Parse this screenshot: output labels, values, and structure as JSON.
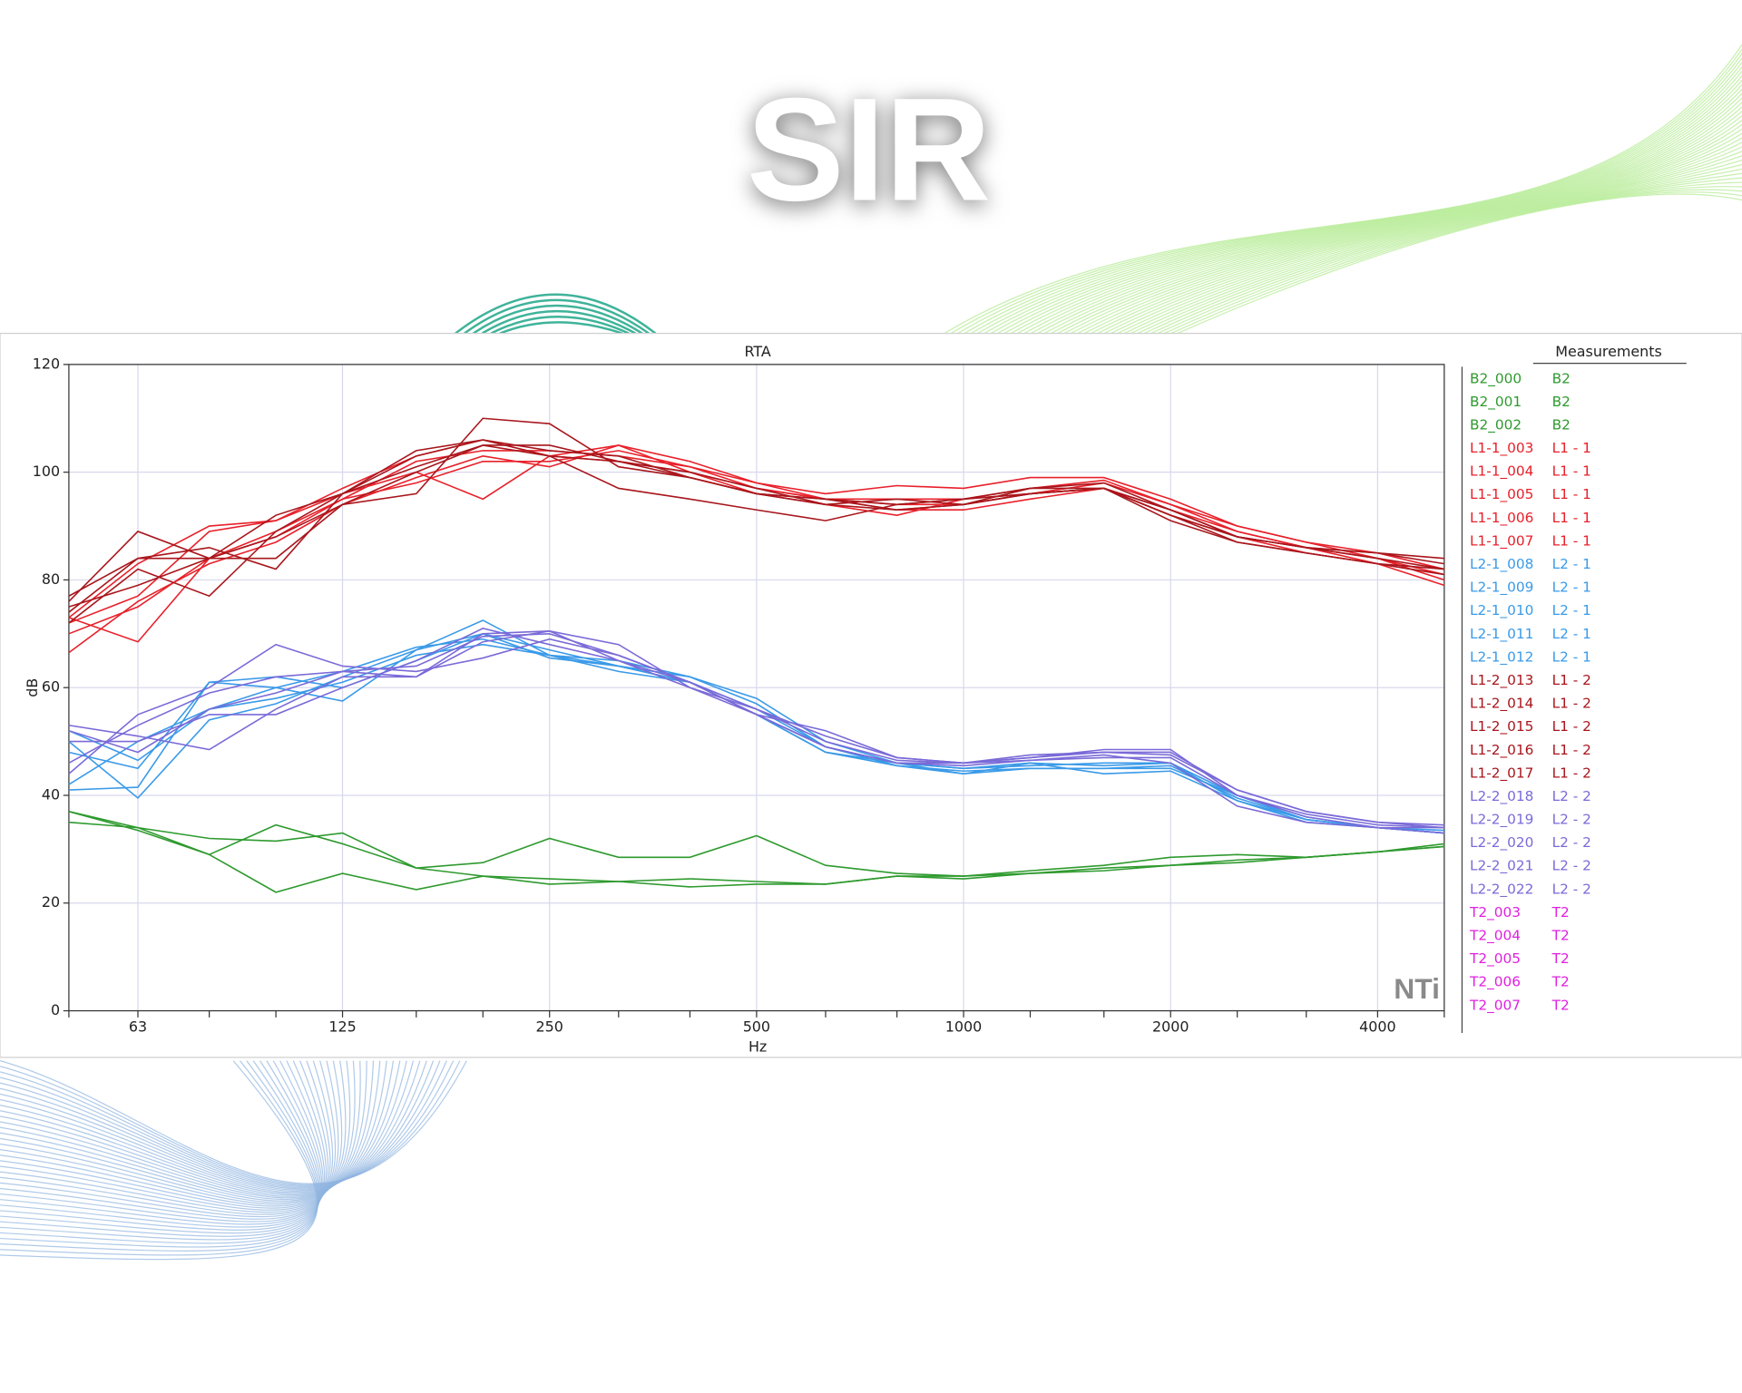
{
  "title": "SIR",
  "chart_data": {
    "type": "line",
    "title": "RTA",
    "x_label": "Hz",
    "y_label": "dB",
    "logo": "NTi",
    "legend_title": "Measurements",
    "xscale": "log",
    "grid": true,
    "x": [
      50,
      63,
      80,
      100,
      125,
      160,
      200,
      250,
      315,
      400,
      500,
      630,
      800,
      1000,
      1250,
      1600,
      2000,
      2500,
      3150,
      4000,
      5000
    ],
    "xlim": [
      50,
      5000
    ],
    "xticks": [
      63,
      125,
      250,
      500,
      1000,
      2000,
      4000
    ],
    "ylim": [
      0,
      120
    ],
    "yticks": [
      0,
      20,
      40,
      60,
      80,
      100,
      120
    ],
    "series": [
      {
        "name": "B2_000",
        "group": "B2",
        "color": "#2e9a2e",
        "values": [
          37,
          34,
          29,
          34.5,
          31,
          26.5,
          25,
          24.5,
          24,
          24.5,
          24,
          23.5,
          25,
          25,
          25.5,
          26,
          27,
          27.5,
          28.5,
          29.5,
          30.5
        ]
      },
      {
        "name": "B2_001",
        "group": "B2",
        "color": "#2e9a2e",
        "values": [
          37,
          33.5,
          29,
          22,
          25.5,
          22.5,
          25,
          23.5,
          24,
          23,
          23.5,
          23.5,
          25,
          24.5,
          25.5,
          26.5,
          27,
          28,
          28.5,
          29.5,
          30.5
        ]
      },
      {
        "name": "B2_002",
        "group": "B2",
        "color": "#2e9a2e",
        "values": [
          35,
          34,
          32,
          31.5,
          33,
          26.5,
          27.5,
          32,
          28.5,
          28.5,
          32.5,
          27,
          25.5,
          25,
          26,
          27,
          28.5,
          29,
          28.5,
          29.5,
          31
        ]
      },
      {
        "name": "L1-1_003",
        "group": "L1 - 1",
        "color": "#e8202a",
        "values": [
          73,
          68.5,
          84,
          88,
          95,
          98,
          102,
          102,
          104,
          101,
          98,
          95,
          95,
          95,
          97,
          98.5,
          94,
          90,
          87,
          85,
          82
        ]
      },
      {
        "name": "L1-1_004",
        "group": "L1 - 1",
        "color": "#e8202a",
        "values": [
          66.5,
          76,
          83,
          87,
          94,
          99,
          103,
          101,
          105,
          100,
          97,
          95,
          94,
          94,
          96,
          97,
          93,
          89,
          86,
          84,
          81
        ]
      },
      {
        "name": "L1-1_005",
        "group": "L1 - 1",
        "color": "#e8202a",
        "values": [
          73,
          83,
          90,
          91,
          96,
          100,
          95,
          103,
          105,
          102,
          98,
          96,
          97.5,
          97,
          99,
          99,
          95,
          90,
          87,
          84,
          80
        ]
      },
      {
        "name": "L1-1_006",
        "group": "L1 - 1",
        "color": "#e8202a",
        "values": [
          70,
          75,
          84,
          89,
          95,
          102,
          104,
          104,
          103,
          101,
          97,
          95,
          93,
          93,
          95,
          97,
          92,
          88,
          85,
          83,
          79
        ]
      },
      {
        "name": "L1-1_007",
        "group": "L1 - 1",
        "color": "#e8202a",
        "values": [
          72,
          77,
          89,
          91,
          97,
          103,
          106,
          103,
          102,
          100,
          96,
          94,
          92,
          95,
          96,
          98,
          94,
          89,
          86,
          83,
          81
        ]
      },
      {
        "name": "L2-1_008",
        "group": "L2 - 1",
        "color": "#3a9ae8",
        "values": [
          41,
          41.5,
          61,
          60,
          57.5,
          67,
          72.5,
          66,
          64,
          61,
          55,
          48,
          46,
          44,
          46,
          44,
          44.5,
          39,
          35.5,
          34,
          33
        ]
      },
      {
        "name": "L2-1_009",
        "group": "L2 - 1",
        "color": "#3a9ae8",
        "values": [
          52,
          46.5,
          56,
          58,
          61,
          66,
          68,
          66,
          63,
          61,
          56,
          49,
          45.5,
          44.5,
          45,
          45,
          45,
          40,
          36,
          34,
          33
        ]
      },
      {
        "name": "L2-1_010",
        "group": "L2 - 1",
        "color": "#3a9ae8",
        "values": [
          50,
          39.5,
          54,
          57,
          62,
          67,
          70,
          65.5,
          64,
          62,
          57,
          49,
          46,
          45,
          45.5,
          46,
          46,
          40,
          35.5,
          34,
          33.5
        ]
      },
      {
        "name": "L2-1_011",
        "group": "L2 - 1",
        "color": "#3a9ae8",
        "values": [
          42,
          50,
          56,
          60,
          63,
          67.5,
          69,
          66,
          65,
          62,
          58,
          50,
          46,
          45,
          46,
          45.5,
          46,
          39,
          35,
          34,
          33
        ]
      },
      {
        "name": "L2-1_012",
        "group": "L2 - 1",
        "color": "#3a9ae8",
        "values": [
          48,
          45,
          61,
          62,
          60,
          65,
          70,
          67,
          64,
          61,
          55,
          48,
          45.5,
          44,
          45,
          45,
          45.5,
          39.5,
          35.5,
          34,
          33
        ]
      },
      {
        "name": "L1-2_013",
        "group": "L1 - 2",
        "color": "#a8161c",
        "values": [
          76,
          89,
          84,
          84,
          94,
          96,
          110,
          109,
          101,
          99,
          96,
          94,
          93,
          94,
          96,
          97,
          91,
          87,
          85,
          83,
          82
        ]
      },
      {
        "name": "L1-2_014",
        "group": "L1 - 2",
        "color": "#a8161c",
        "values": [
          74,
          84,
          86,
          82,
          96,
          103,
          106,
          103,
          97,
          95,
          93,
          91,
          94,
          95,
          96,
          97,
          92,
          87,
          85,
          83,
          81
        ]
      },
      {
        "name": "L1-2_015",
        "group": "L1 - 2",
        "color": "#a8161c",
        "values": [
          72,
          82,
          77,
          89,
          96,
          101,
          105,
          105,
          102,
          99,
          96,
          95,
          94,
          95,
          97,
          97,
          92,
          88,
          86,
          84,
          82
        ]
      },
      {
        "name": "L1-2_016",
        "group": "L1 - 2",
        "color": "#a8161c",
        "values": [
          75,
          79,
          84,
          92,
          96,
          104,
          106,
          104,
          103,
          99,
          96,
          95,
          93,
          94,
          96,
          97,
          93,
          88,
          86,
          85,
          83
        ]
      },
      {
        "name": "L1-2_017",
        "group": "L1 - 2",
        "color": "#a8161c",
        "values": [
          77,
          84,
          84,
          88,
          94,
          100,
          105,
          103,
          102,
          100,
          97,
          94,
          95,
          94,
          97,
          98,
          93,
          88,
          86,
          85,
          84
        ]
      },
      {
        "name": "L2-2_018",
        "group": "L2 - 2",
        "color": "#7a6ad8",
        "values": [
          53,
          51,
          48.5,
          56,
          62,
          62,
          70,
          70.5,
          68,
          60,
          55,
          52,
          47,
          46,
          47,
          48,
          47.5,
          41,
          37,
          35,
          34
        ]
      },
      {
        "name": "L2-2_019",
        "group": "L2 - 2",
        "color": "#7a6ad8",
        "values": [
          44,
          55,
          60,
          68,
          64,
          63,
          65.5,
          69,
          66,
          61,
          55,
          49,
          46,
          45.5,
          46.5,
          47.5,
          46,
          38,
          35,
          34,
          33
        ]
      },
      {
        "name": "L2-2_020",
        "group": "L2 - 2",
        "color": "#7a6ad8",
        "values": [
          50,
          50,
          55,
          55,
          60,
          65,
          71,
          68,
          65,
          61,
          56,
          50,
          46.5,
          46,
          47,
          48.5,
          48.5,
          40,
          36,
          34,
          34
        ]
      },
      {
        "name": "L2-2_021",
        "group": "L2 - 2",
        "color": "#7a6ad8",
        "values": [
          46,
          53,
          59,
          62,
          63,
          64,
          69.5,
          70,
          66,
          61,
          55,
          49,
          46,
          46,
          46.5,
          47,
          47,
          40,
          36.5,
          34.5,
          34
        ]
      },
      {
        "name": "L2-2_022",
        "group": "L2 - 2",
        "color": "#7a6ad8",
        "values": [
          52,
          48,
          56,
          59,
          63,
          62,
          68.5,
          70.5,
          65,
          60,
          56,
          51,
          47,
          46,
          47.5,
          48,
          48,
          41,
          37,
          35,
          34.5
        ]
      },
      {
        "name": "T2_003",
        "group": "T2",
        "color": "#e020e0"
      },
      {
        "name": "T2_004",
        "group": "T2",
        "color": "#e020e0"
      },
      {
        "name": "T2_005",
        "group": "T2",
        "color": "#e020e0"
      },
      {
        "name": "T2_006",
        "group": "T2",
        "color": "#e020e0"
      },
      {
        "name": "T2_007",
        "group": "T2",
        "color": "#e020e0"
      }
    ]
  }
}
